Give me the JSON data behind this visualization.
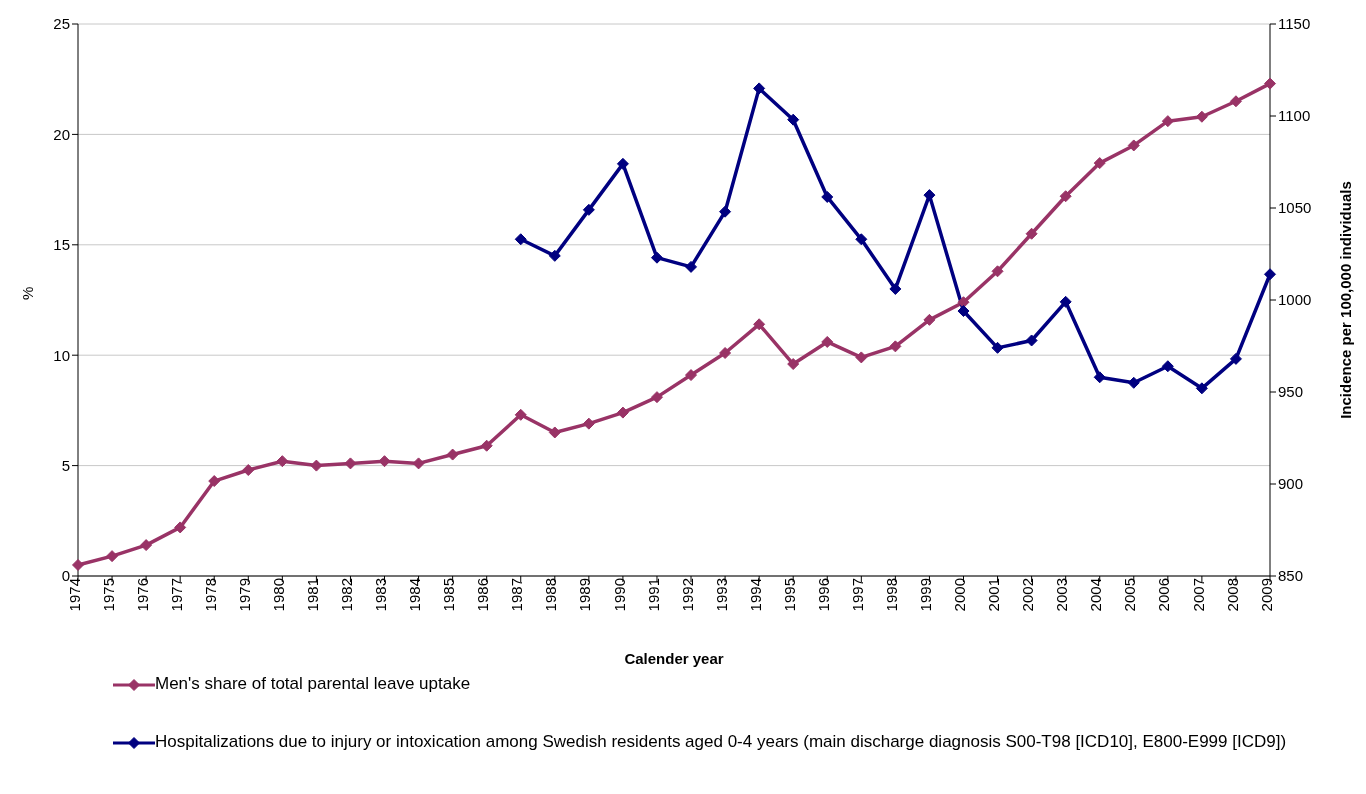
{
  "chart_data": {
    "type": "line",
    "xlabel": "Calender year",
    "ylabel": "%",
    "y2label": "Incidence per 100,000 individuals",
    "categories": [
      "1974",
      "1975",
      "1976",
      "1977",
      "1978",
      "1979",
      "1980",
      "1981",
      "1982",
      "1983",
      "1984",
      "1985",
      "1986",
      "1987",
      "1988",
      "1989",
      "1990",
      "1991",
      "1992",
      "1993",
      "1994",
      "1995",
      "1996",
      "1997",
      "1998",
      "1999",
      "2000",
      "2001",
      "2002",
      "2003",
      "2004",
      "2005",
      "2006",
      "2007",
      "2008",
      "2009"
    ],
    "series": [
      {
        "name": "Men's share of total parental leave uptake",
        "color": "#993366",
        "values": [
          0.5,
          0.9,
          1.4,
          2.2,
          4.3,
          4.8,
          5.2,
          5.0,
          5.1,
          5.2,
          5.1,
          5.5,
          5.9,
          7.3,
          6.5,
          6.9,
          7.4,
          8.1,
          9.1,
          10.1,
          11.4,
          9.6,
          10.6,
          9.9,
          10.4,
          11.6,
          12.4,
          13.8,
          15.5,
          17.2,
          18.7,
          19.5,
          20.6,
          20.8,
          21.5,
          22.3
        ]
      },
      {
        "name": "Hospitalizations due to injury or intoxication among Swedish residents aged 0-4 years (main discharge diagnosis S00-T98 [ICD10], E800-E999 [ICD9])",
        "color": "#000080",
        "axis": "y2",
        "values": [
          null,
          null,
          null,
          null,
          null,
          null,
          null,
          null,
          null,
          null,
          null,
          null,
          null,
          1033,
          1024,
          1049,
          1074,
          1023,
          1018,
          1048,
          1115,
          1098,
          1056,
          1033,
          1006,
          1057,
          994,
          974,
          978,
          999,
          958,
          955,
          964,
          952,
          968,
          1014
        ]
      }
    ],
    "ylim": [
      0,
      25
    ],
    "yticks": [
      0,
      5,
      10,
      15,
      20,
      25
    ],
    "y2lim": [
      850,
      1150
    ],
    "y2ticks": [
      850,
      900,
      950,
      1000,
      1050,
      1100,
      1150
    ],
    "grid": "y",
    "legend": "bottom",
    "marker": "diamond",
    "line_style": "solid"
  }
}
